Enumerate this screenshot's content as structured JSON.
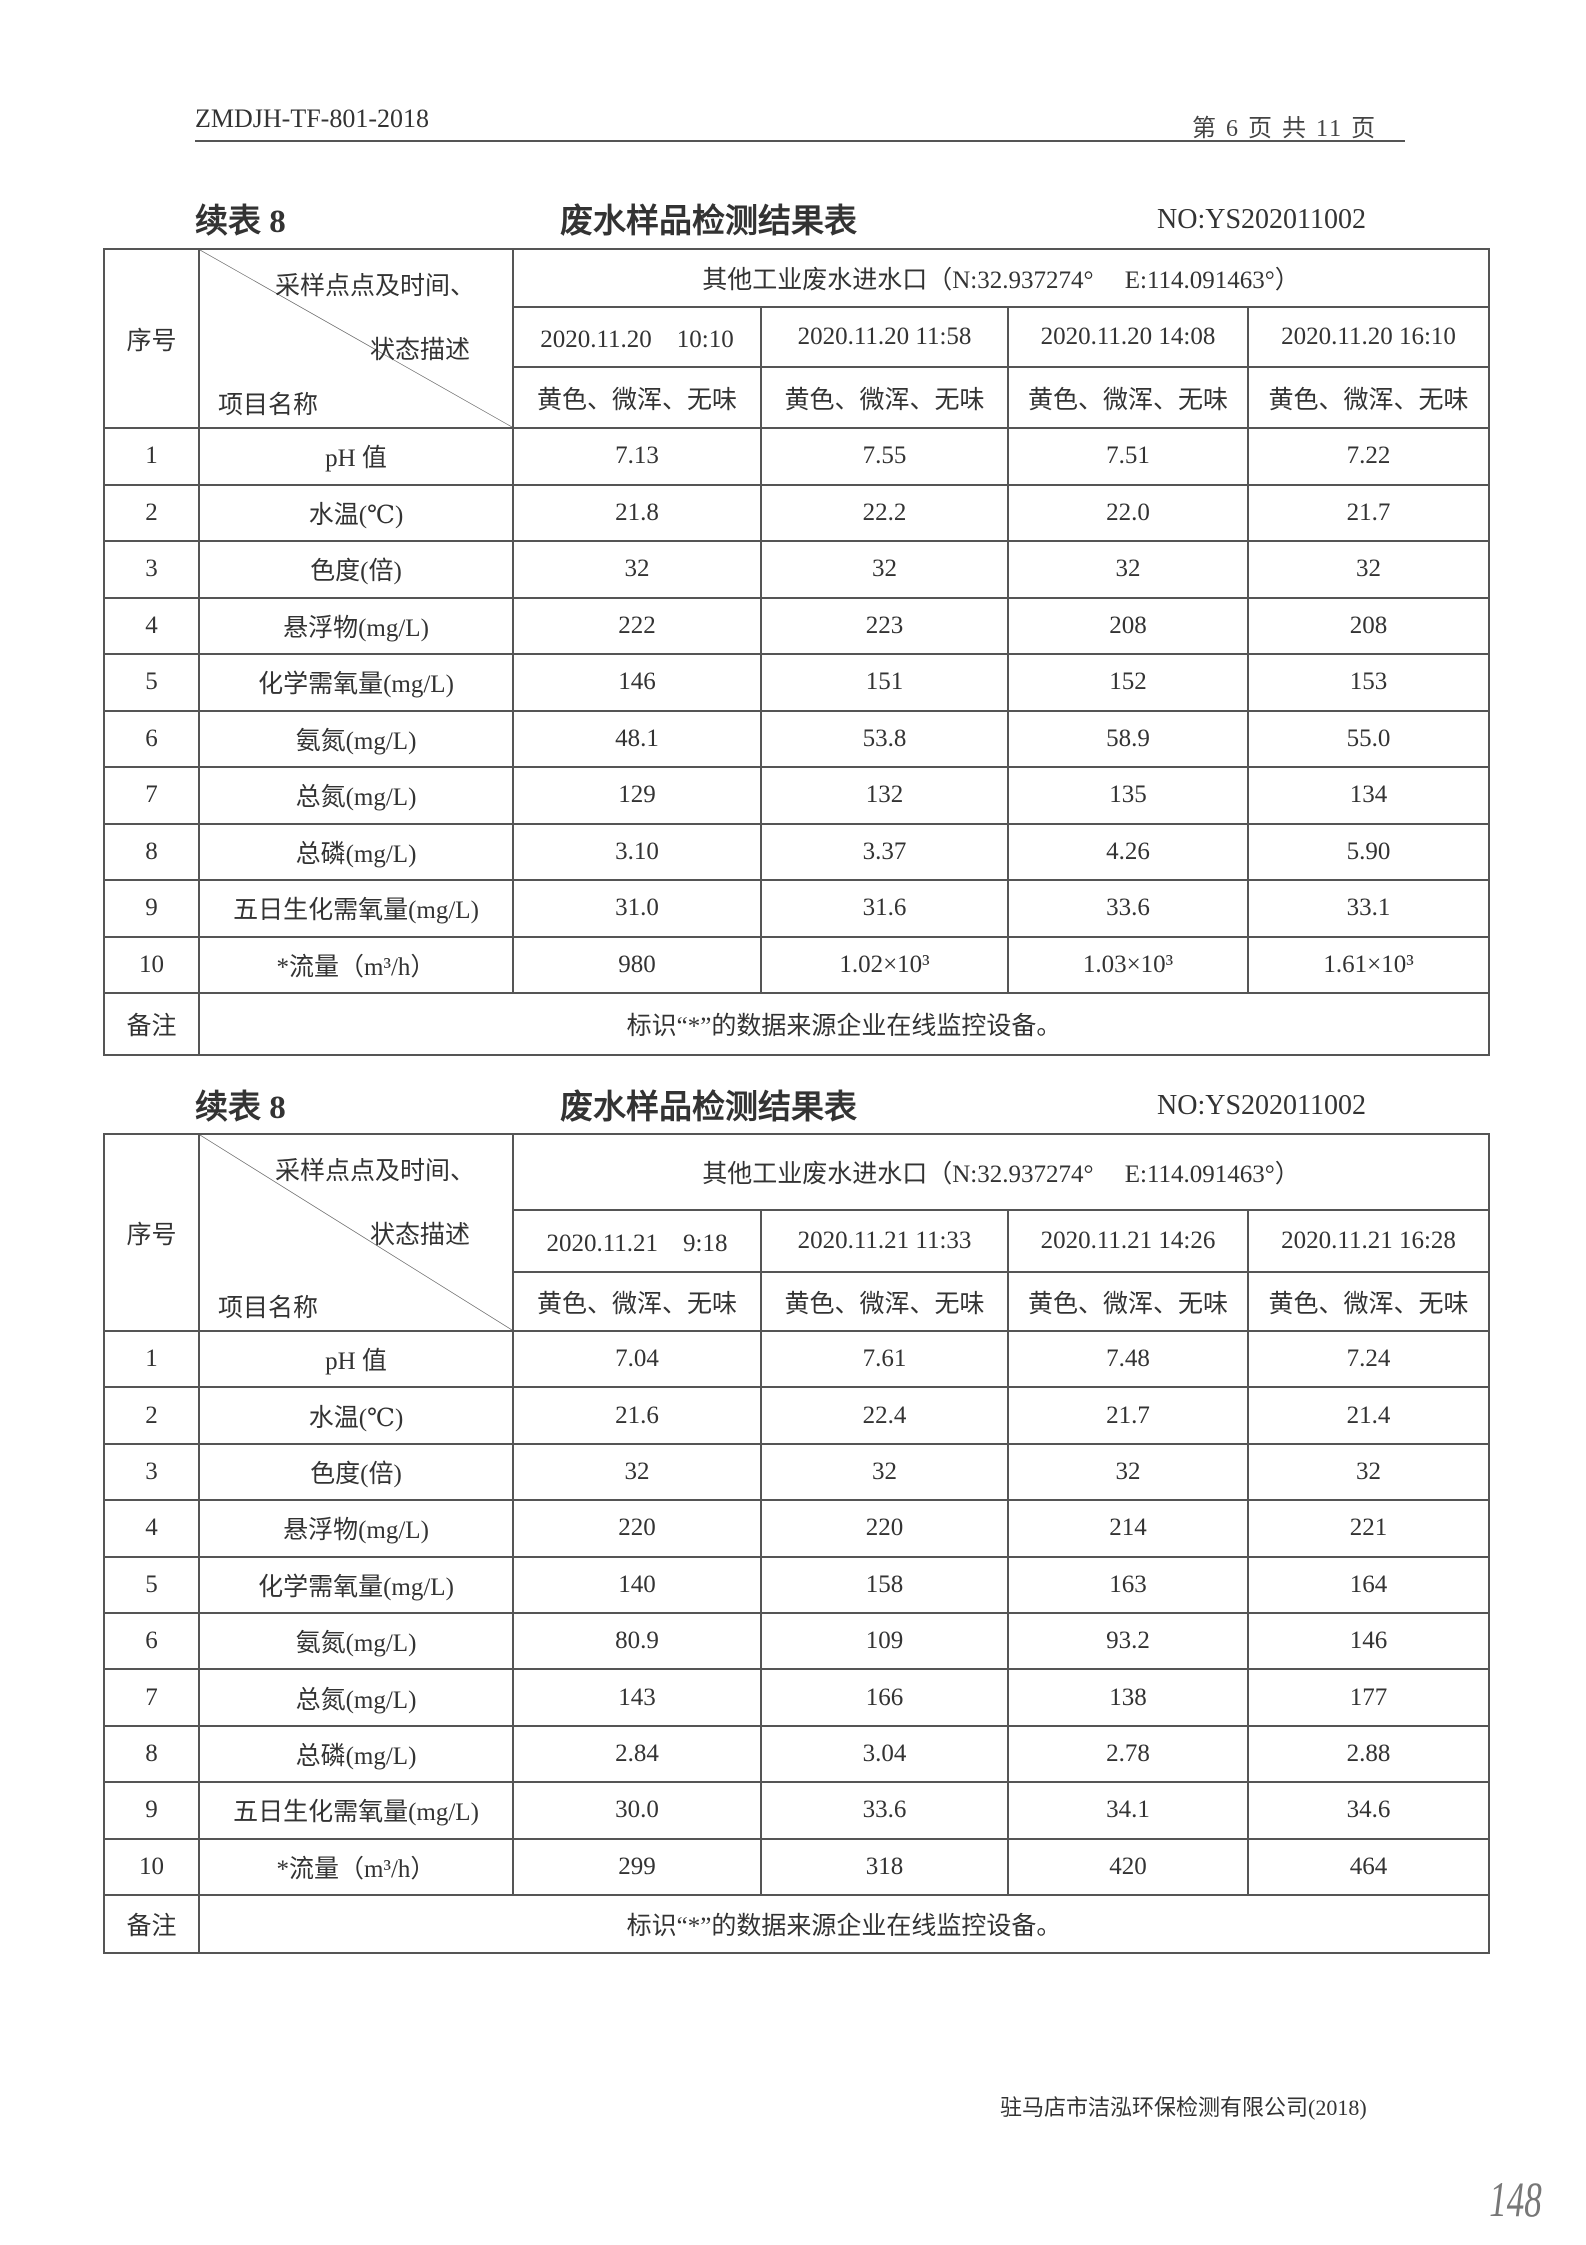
{
  "header": {
    "doc_code": "ZMDJH-TF-801-2018",
    "page_info": "第 6 页 共 11 页"
  },
  "tables": [
    {
      "caption_left": "续表 8",
      "caption_title": "废水样品检测结果表",
      "report_no": "NO:YS202011002",
      "col_seq": "序号",
      "diag_top": "采样点点及时间、",
      "diag_mid": "状态描述",
      "diag_bottom": "项目名称",
      "location": "其他工业废水进水口（N:32.937274°　 E:114.091463°）",
      "times": [
        "2020.11.20　10:10",
        "2020.11.20 11:58",
        "2020.11.20 14:08",
        "2020.11.20 16:10"
      ],
      "states": [
        "黄色、微浑、无味",
        "黄色、微浑、无味",
        "黄色、微浑、无味",
        "黄色、微浑、无味"
      ],
      "rows": [
        {
          "no": "1",
          "item": "pH 值",
          "values": [
            "7.13",
            "7.55",
            "7.51",
            "7.22"
          ]
        },
        {
          "no": "2",
          "item": "水温(℃)",
          "values": [
            "21.8",
            "22.2",
            "22.0",
            "21.7"
          ]
        },
        {
          "no": "3",
          "item": "色度(倍)",
          "values": [
            "32",
            "32",
            "32",
            "32"
          ]
        },
        {
          "no": "4",
          "item": "悬浮物(mg/L)",
          "values": [
            "222",
            "223",
            "208",
            "208"
          ]
        },
        {
          "no": "5",
          "item": "化学需氧量(mg/L)",
          "values": [
            "146",
            "151",
            "152",
            "153"
          ]
        },
        {
          "no": "6",
          "item": "氨氮(mg/L)",
          "values": [
            "48.1",
            "53.8",
            "58.9",
            "55.0"
          ]
        },
        {
          "no": "7",
          "item": "总氮(mg/L)",
          "values": [
            "129",
            "132",
            "135",
            "134"
          ]
        },
        {
          "no": "8",
          "item": "总磷(mg/L)",
          "values": [
            "3.10",
            "3.37",
            "4.26",
            "5.90"
          ]
        },
        {
          "no": "9",
          "item": "五日生化需氧量(mg/L)",
          "values": [
            "31.0",
            "31.6",
            "33.6",
            "33.1"
          ]
        },
        {
          "no": "10",
          "item": "*流量（m³/h）",
          "values": [
            "980",
            "1.02×10³",
            "1.03×10³",
            "1.61×10³"
          ]
        }
      ],
      "note_label": "备注",
      "note_text": "标识“*”的数据来源企业在线监控设备。"
    },
    {
      "caption_left": "续表 8",
      "caption_title": "废水样品检测结果表",
      "report_no": "NO:YS202011002",
      "col_seq": "序号",
      "diag_top": "采样点点及时间、",
      "diag_mid": "状态描述",
      "diag_bottom": "项目名称",
      "location": "其他工业废水进水口（N:32.937274°　 E:114.091463°）",
      "times": [
        "2020.11.21　9:18",
        "2020.11.21 11:33",
        "2020.11.21 14:26",
        "2020.11.21 16:28"
      ],
      "states": [
        "黄色、微浑、无味",
        "黄色、微浑、无味",
        "黄色、微浑、无味",
        "黄色、微浑、无味"
      ],
      "rows": [
        {
          "no": "1",
          "item": "pH 值",
          "values": [
            "7.04",
            "7.61",
            "7.48",
            "7.24"
          ]
        },
        {
          "no": "2",
          "item": "水温(℃)",
          "values": [
            "21.6",
            "22.4",
            "21.7",
            "21.4"
          ]
        },
        {
          "no": "3",
          "item": "色度(倍)",
          "values": [
            "32",
            "32",
            "32",
            "32"
          ]
        },
        {
          "no": "4",
          "item": "悬浮物(mg/L)",
          "values": [
            "220",
            "220",
            "214",
            "221"
          ]
        },
        {
          "no": "5",
          "item": "化学需氧量(mg/L)",
          "values": [
            "140",
            "158",
            "163",
            "164"
          ]
        },
        {
          "no": "6",
          "item": "氨氮(mg/L)",
          "values": [
            "80.9",
            "109",
            "93.2",
            "146"
          ]
        },
        {
          "no": "7",
          "item": "总氮(mg/L)",
          "values": [
            "143",
            "166",
            "138",
            "177"
          ]
        },
        {
          "no": "8",
          "item": "总磷(mg/L)",
          "values": [
            "2.84",
            "3.04",
            "2.78",
            "2.88"
          ]
        },
        {
          "no": "9",
          "item": "五日生化需氧量(mg/L)",
          "values": [
            "30.0",
            "33.6",
            "34.1",
            "34.6"
          ]
        },
        {
          "no": "10",
          "item": "*流量（m³/h）",
          "values": [
            "299",
            "318",
            "420",
            "464"
          ]
        }
      ],
      "note_label": "备注",
      "note_text": "标识“*”的数据来源企业在线监控设备。"
    }
  ],
  "footer": {
    "company": "驻马店市洁泓环保检测有限公司(2018)",
    "handwritten_page": "148"
  }
}
